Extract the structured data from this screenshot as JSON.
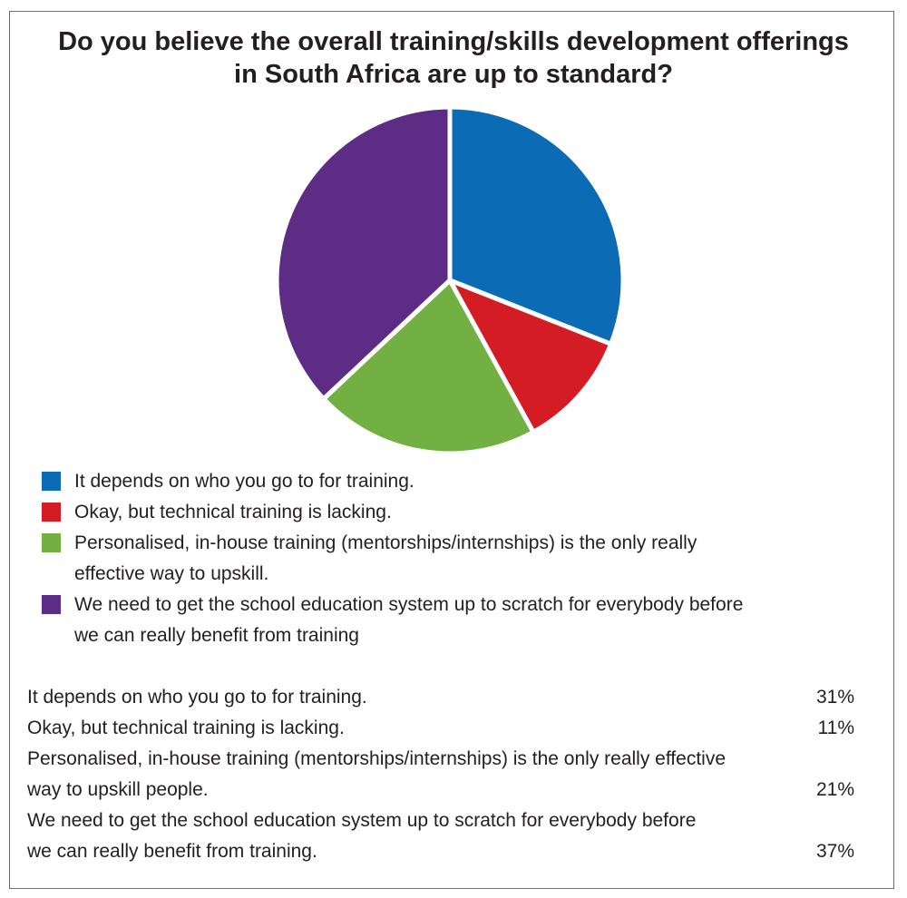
{
  "chart_data": {
    "type": "pie",
    "title": [
      "Do you believe the overall training/skills development offerings",
      "in South Africa are up to standard?"
    ],
    "categories": [
      "It depends on who you go to for training.",
      "Okay, but technical training is lacking.",
      "Personalised, in-house training (mentorships/internships) is the only really effective way to upskill.",
      "We need to get the school education system up to scratch for everybody before we can really benefit from training"
    ],
    "values": [
      31,
      11,
      21,
      37
    ],
    "unit": "%",
    "colors": [
      "#0b6bb5",
      "#d41c24",
      "#72b043",
      "#5d2d86"
    ],
    "start_angle": "12 o'clock",
    "direction": "clockwise",
    "legend_position": "bottom"
  },
  "legend": [
    {
      "lines": [
        "It depends on who you go to for training."
      ],
      "color": "#0b6bb5"
    },
    {
      "lines": [
        "Okay, but technical training is lacking."
      ],
      "color": "#d41c24"
    },
    {
      "lines": [
        "Personalised, in-house training (mentorships/internships) is the only really",
        "effective way to upskill."
      ],
      "color": "#72b043"
    },
    {
      "lines": [
        "We need to get the school education system up to scratch for everybody before",
        "we can really benefit from training"
      ],
      "color": "#5d2d86"
    }
  ],
  "table": [
    {
      "lines": [
        "It depends on who you go to for training."
      ],
      "value": "31%"
    },
    {
      "lines": [
        "Okay, but technical training is lacking."
      ],
      "value": "11%"
    },
    {
      "lines": [
        "Personalised, in-house training (mentorships/internships) is the only really effective",
        "way to upskill people."
      ],
      "value": "21%"
    },
    {
      "lines": [
        "We need to get the school education system up to scratch for everybody before",
        "we can really benefit from training."
      ],
      "value": "37%"
    }
  ]
}
